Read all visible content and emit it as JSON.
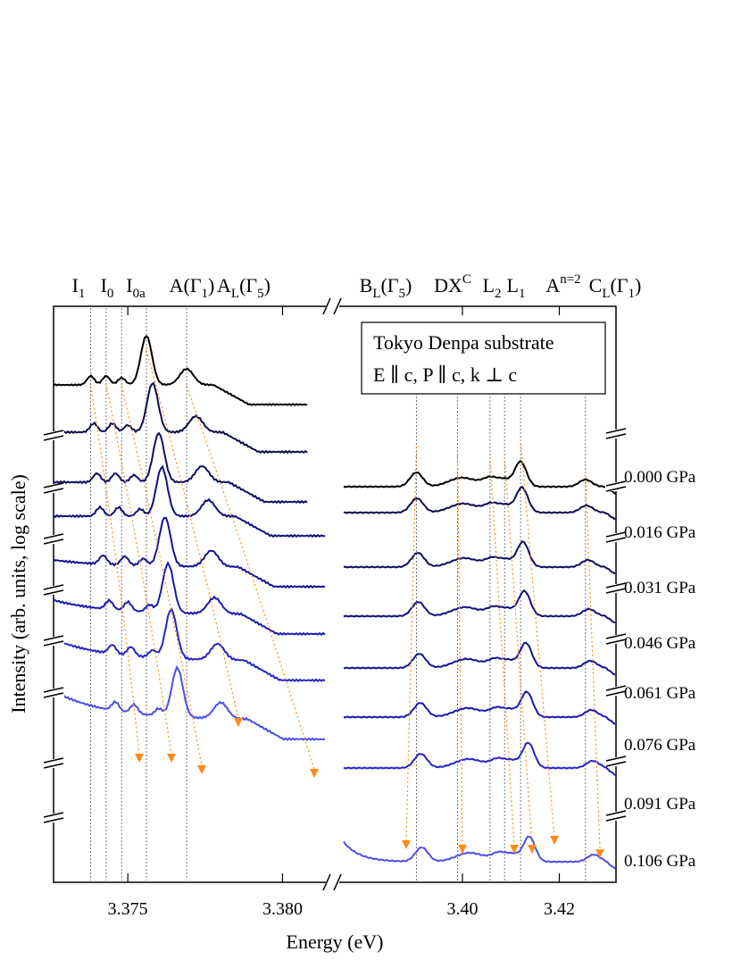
{
  "chart_data": {
    "type": "line",
    "ylabel": "Intensity (arb. units, log scale)",
    "xlabel": "Energy (eV)",
    "legend_box": {
      "line1": "Tokyo Denpa substrate",
      "line2": "E ∥ c,  P ∥ c,  k ⊥ c"
    },
    "panels": [
      {
        "name": "left",
        "xlim": [
          3.3726,
          3.3814
        ],
        "ticks": [
          3.375,
          3.38
        ],
        "tick_labels": [
          "3.375",
          "3.380"
        ],
        "peak_labels": [
          {
            "base": "I",
            "sub": "1",
            "sup": "",
            "tail": ""
          },
          {
            "base": "I",
            "sub": "0",
            "sup": "",
            "tail": ""
          },
          {
            "base": "I",
            "sub": "0a",
            "sup": "",
            "tail": ""
          },
          {
            "base": "A(Γ",
            "sub": "1",
            "sup": "",
            "tail": ")"
          },
          {
            "base": "A",
            "sub": "L",
            "sup": "",
            "tail": "(Γ5)"
          }
        ],
        "peak_energies": [
          3.3738,
          3.3743,
          3.3748,
          3.3756,
          3.3769
        ]
      },
      {
        "name": "right",
        "xlim": [
          3.3755,
          3.4317
        ],
        "ticks": [
          3.4,
          3.42
        ],
        "tick_labels": [
          "3.40",
          "3.42"
        ],
        "peak_labels": [
          {
            "base": "B",
            "sub": "L",
            "sup": "",
            "tail": "(Γ5)"
          },
          {
            "base": "DX",
            "sub": "",
            "sup": "C",
            "tail": ""
          },
          {
            "base": "L",
            "sub": "2",
            "sup": "",
            "tail": ""
          },
          {
            "base": "L",
            "sub": "1",
            "sup": "",
            "tail": ""
          },
          {
            "base": "A",
            "sub": "",
            "sup": "n=2",
            "tail": ""
          },
          {
            "base": "C",
            "sub": "L",
            "sup": "",
            "tail": "(Γ1)"
          }
        ],
        "peak_energies": [
          3.3905,
          3.399,
          3.4057,
          3.4087,
          3.412,
          3.4254
        ]
      }
    ],
    "series": [
      {
        "name": "0.000 GPa",
        "left_peaks": [
          3.3738,
          3.3743,
          3.3748,
          3.3756,
          3.3769
        ],
        "right_peaks": [
          3.3905,
          3.399,
          3.4057,
          3.4087,
          3.412,
          3.4254
        ]
      },
      {
        "name": "0.016 GPa",
        "left_peaks": [
          3.3739,
          3.3745,
          3.375,
          3.3758,
          3.3772
        ],
        "right_peaks": [
          3.3906,
          3.3992,
          3.406,
          3.409,
          3.4123,
          3.4256
        ]
      },
      {
        "name": "0.031 GPa",
        "left_peaks": [
          3.374,
          3.3746,
          3.3752,
          3.376,
          3.3774
        ],
        "right_peaks": [
          3.3908,
          3.3994,
          3.4062,
          3.4092,
          3.4125,
          3.4259
        ]
      },
      {
        "name": "0.046 GPa",
        "left_peaks": [
          3.3741,
          3.3747,
          3.3754,
          3.3761,
          3.3776
        ],
        "right_peaks": [
          3.3909,
          3.3996,
          3.4065,
          3.4095,
          3.4128,
          3.4261
        ]
      },
      {
        "name": "0.061 GPa",
        "left_peaks": [
          3.3742,
          3.3749,
          3.3755,
          3.3762,
          3.3777
        ],
        "right_peaks": [
          3.3911,
          3.3999,
          3.4068,
          3.4098,
          3.4131,
          3.4264
        ]
      },
      {
        "name": "0.076 GPa",
        "left_peaks": [
          3.3744,
          3.375,
          3.3757,
          3.3763,
          3.3778
        ],
        "right_peaks": [
          3.3913,
          3.4001,
          3.4071,
          3.4101,
          3.4133,
          3.4266
        ]
      },
      {
        "name": "0.091 GPa",
        "left_peaks": [
          3.3745,
          3.3751,
          3.3758,
          3.3764,
          3.3779
        ],
        "right_peaks": [
          3.3914,
          3.4003,
          3.4073,
          3.4103,
          3.4136,
          3.4269
        ]
      },
      {
        "name": "0.106 GPa",
        "left_peaks": [
          3.3746,
          3.3752,
          3.376,
          3.3766,
          3.378
        ],
        "right_peaks": [
          3.3916,
          3.4005,
          3.4076,
          3.4106,
          3.4138,
          3.4271
        ]
      }
    ],
    "colors": [
      "#000000",
      "#0b0b4a",
      "#0e0e63",
      "#10107a",
      "#141492",
      "#1a1aac",
      "#2424c6",
      "#4c4ce6"
    ],
    "arrow_color": "#ff8c1a"
  }
}
